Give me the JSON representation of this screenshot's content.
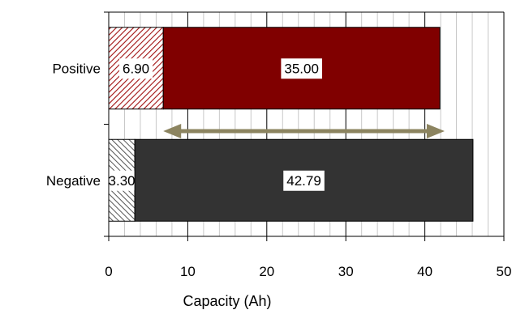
{
  "chart_data": {
    "type": "bar",
    "orientation": "horizontal",
    "stacked": true,
    "categories": [
      "Positive",
      "Negative"
    ],
    "series": [
      {
        "values": [
          6.9,
          3.3
        ],
        "labels": [
          "6.90",
          "3.30"
        ],
        "pattern": "hatched",
        "colors": [
          "#8b0000",
          "#404040"
        ]
      },
      {
        "values": [
          35.0,
          42.79
        ],
        "labels": [
          "35.00",
          "42.79"
        ],
        "pattern": "solid",
        "colors": [
          "#800000",
          "#333333"
        ]
      }
    ],
    "xlabel": "Capacity (Ah)",
    "xlim": [
      0,
      50
    ],
    "xticks": [
      "0",
      "10",
      "20",
      "30",
      "40",
      "50"
    ],
    "minor_gridline_step": 2,
    "grid": true,
    "annotation": {
      "type": "double-arrow",
      "from": 6.9,
      "to": 42.5,
      "color": "#8c8460"
    }
  }
}
